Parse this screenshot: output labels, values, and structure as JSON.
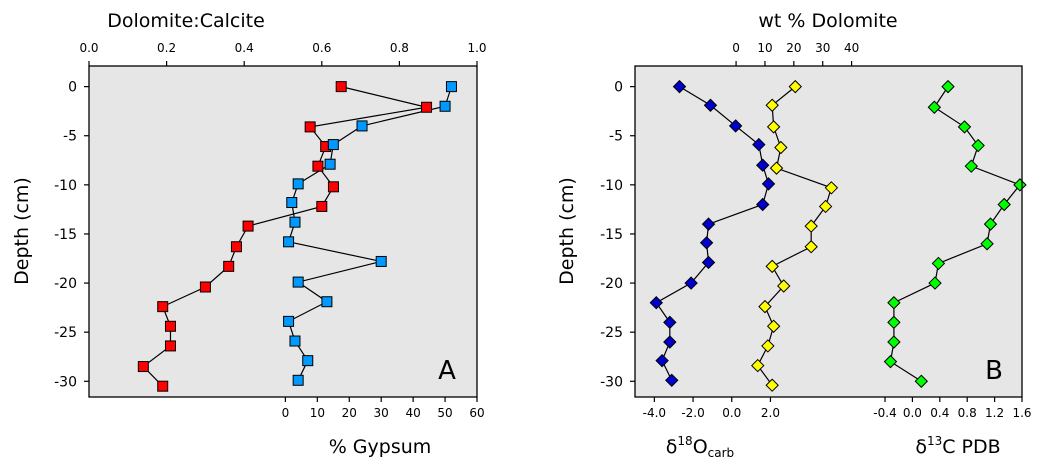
{
  "chart_data": [
    {
      "panel": "A",
      "type": "line",
      "panel_label": "A",
      "y_axis": {
        "label": "Depth (cm)",
        "ticks": [
          0,
          -5,
          -10,
          -15,
          -20,
          -25,
          -30
        ],
        "ylim": [
          -31.6,
          2.1
        ]
      },
      "x_axis_top": {
        "label": "Dolomite:Calcite",
        "ticks": [
          "0.0",
          "0.2",
          "0.4",
          "0.6",
          "0.8",
          "1.0"
        ],
        "xlim": [
          0.0,
          1.0
        ]
      },
      "x_axis_bottom": {
        "label": "% Gypsum",
        "ticks": [
          "0",
          "10",
          "20",
          "30",
          "40",
          "50",
          "60"
        ],
        "xlim": [
          -61.5,
          60.0
        ]
      },
      "series": [
        {
          "axis": "top",
          "marker": "square",
          "color": "#ff0000",
          "points": [
            {
              "x": 0.65,
              "y": 0.0
            },
            {
              "x": 0.87,
              "y": -2.1
            },
            {
              "x": 0.57,
              "y": -4.1
            },
            {
              "x": 0.61,
              "y": -6.1
            },
            {
              "x": 0.59,
              "y": -8.1
            },
            {
              "x": 0.63,
              "y": -10.2
            },
            {
              "x": 0.6,
              "y": -12.2
            },
            {
              "x": 0.41,
              "y": -14.2
            },
            {
              "x": 0.38,
              "y": -16.3
            },
            {
              "x": 0.36,
              "y": -18.3
            },
            {
              "x": 0.3,
              "y": -20.4
            },
            {
              "x": 0.19,
              "y": -22.4
            },
            {
              "x": 0.21,
              "y": -24.4
            },
            {
              "x": 0.21,
              "y": -26.4
            },
            {
              "x": 0.14,
              "y": -28.5
            },
            {
              "x": 0.19,
              "y": -30.5
            }
          ]
        },
        {
          "axis": "bottom",
          "marker": "square",
          "color": "#0099ff",
          "points": [
            {
              "x": 52,
              "y": 0.0
            },
            {
              "x": 50,
              "y": -2.0
            },
            {
              "x": 24,
              "y": -4.0
            },
            {
              "x": 15,
              "y": -5.9
            },
            {
              "x": 14,
              "y": -7.9
            },
            {
              "x": 4,
              "y": -9.9
            },
            {
              "x": 2,
              "y": -11.8
            },
            {
              "x": 3,
              "y": -13.8
            },
            {
              "x": 1,
              "y": -15.8
            },
            {
              "x": 30,
              "y": -17.8
            },
            {
              "x": 4,
              "y": -19.9
            },
            {
              "x": 13,
              "y": -21.9
            },
            {
              "x": 1,
              "y": -23.9
            },
            {
              "x": 3,
              "y": -25.9
            },
            {
              "x": 7,
              "y": -27.9
            },
            {
              "x": 4,
              "y": -29.9
            }
          ]
        }
      ]
    },
    {
      "panel": "B",
      "type": "line",
      "panel_label": "B",
      "y_axis": {
        "label": "Depth (cm)",
        "ticks": [
          0,
          -5,
          -10,
          -15,
          -20,
          -25,
          -30
        ],
        "ylim": [
          -31.6,
          2.1
        ]
      },
      "x_axis_top": {
        "label": "wt % Dolomite",
        "ticks": [
          "0",
          "10",
          "20",
          "30",
          "40"
        ],
        "xlim": [
          -35.0,
          99.0
        ]
      },
      "x_axis_bottom_left": {
        "label": "δ18Ocarb",
        "label_main": "δ",
        "label_sup": "18",
        "label_after": "O",
        "label_sub": "carb",
        "ticks": [
          "-4.0",
          "-2.0",
          "0.0",
          "2.0"
        ],
        "xlim": [
          -5.0,
          15.0
        ]
      },
      "x_axis_bottom_right": {
        "label": "δ13C PDB",
        "label_main": "δ",
        "label_sup": "13",
        "label_after": "C PDB",
        "ticks": [
          "-0.4",
          "0.0",
          "0.4",
          "0.8",
          "1.2",
          "1.6"
        ],
        "xlim": [
          -4.05,
          1.6
        ]
      },
      "series": [
        {
          "axis": "bottom_left",
          "marker": "diamond",
          "color": "#0000cc",
          "points": [
            {
              "x": -2.7,
              "y": 0.0
            },
            {
              "x": -1.1,
              "y": -1.9
            },
            {
              "x": 0.2,
              "y": -4.0
            },
            {
              "x": 1.4,
              "y": -5.9
            },
            {
              "x": 1.6,
              "y": -8.0
            },
            {
              "x": 1.9,
              "y": -9.9
            },
            {
              "x": 1.6,
              "y": -12.0
            },
            {
              "x": -1.2,
              "y": -14.0
            },
            {
              "x": -1.3,
              "y": -15.9
            },
            {
              "x": -1.2,
              "y": -17.9
            },
            {
              "x": -2.1,
              "y": -20.0
            },
            {
              "x": -3.9,
              "y": -22.0
            },
            {
              "x": -3.2,
              "y": -24.0
            },
            {
              "x": -3.2,
              "y": -26.0
            },
            {
              "x": -3.6,
              "y": -27.9
            },
            {
              "x": -3.1,
              "y": -29.9
            }
          ]
        },
        {
          "axis": "top",
          "marker": "diamond",
          "color": "#ffff00",
          "points": [
            {
              "x": 20.5,
              "y": 0.0
            },
            {
              "x": 12.5,
              "y": -1.9
            },
            {
              "x": 13.0,
              "y": -4.1
            },
            {
              "x": 15.5,
              "y": -6.2
            },
            {
              "x": 14.0,
              "y": -8.3
            },
            {
              "x": 33.0,
              "y": -10.3
            },
            {
              "x": 31.0,
              "y": -12.2
            },
            {
              "x": 26.0,
              "y": -14.2
            },
            {
              "x": 26.0,
              "y": -16.3
            },
            {
              "x": 12.5,
              "y": -18.3
            },
            {
              "x": 16.5,
              "y": -20.3
            },
            {
              "x": 10.0,
              "y": -22.4
            },
            {
              "x": 13.0,
              "y": -24.4
            },
            {
              "x": 11.0,
              "y": -26.4
            },
            {
              "x": 7.5,
              "y": -28.4
            },
            {
              "x": 12.5,
              "y": -30.4
            }
          ]
        },
        {
          "axis": "bottom_right",
          "marker": "diamond",
          "color": "#00ff00",
          "points": [
            {
              "x": 0.52,
              "y": 0.0
            },
            {
              "x": 0.32,
              "y": -2.1
            },
            {
              "x": 0.76,
              "y": -4.1
            },
            {
              "x": 0.96,
              "y": -6.0
            },
            {
              "x": 0.86,
              "y": -8.1
            },
            {
              "x": 1.57,
              "y": -10.0
            },
            {
              "x": 1.34,
              "y": -12.0
            },
            {
              "x": 1.14,
              "y": -14.0
            },
            {
              "x": 1.09,
              "y": -16.0
            },
            {
              "x": 0.38,
              "y": -18.0
            },
            {
              "x": 0.33,
              "y": -20.0
            },
            {
              "x": -0.27,
              "y": -22.0
            },
            {
              "x": -0.27,
              "y": -24.0
            },
            {
              "x": -0.27,
              "y": -26.0
            },
            {
              "x": -0.32,
              "y": -28.0
            },
            {
              "x": 0.13,
              "y": -30.0
            }
          ]
        }
      ]
    }
  ]
}
